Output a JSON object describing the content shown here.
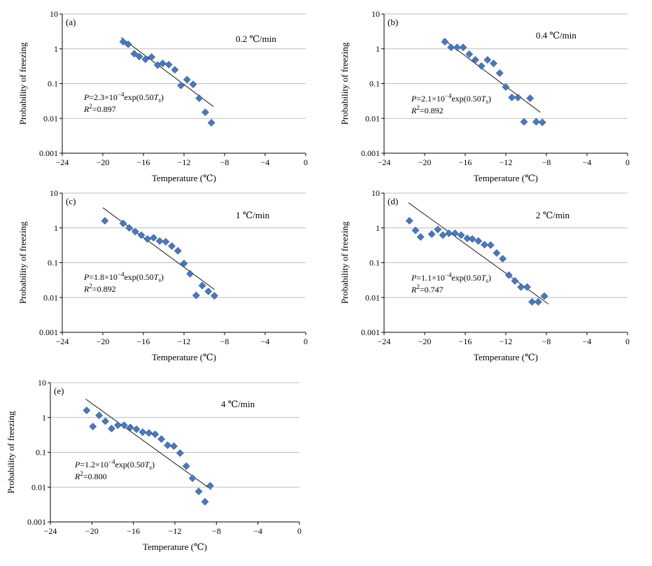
{
  "figure": {
    "xlabel": "Temperature (℃)",
    "ylabel": "Probability of freezing",
    "marker_color": "#4a78b8",
    "marker_edge": "#3a609a",
    "grid_color": "#bdbdbd",
    "fit_color": "#000000"
  },
  "chart_data": [
    {
      "type": "scatter",
      "id": "a",
      "panel_label": "(a)",
      "rate_label": "0.2 ℃/min",
      "equation": {
        "prefix": "P",
        "body": "=2.3×10",
        "exp": "−4",
        "tail": "exp(0.50",
        "var": "T",
        "sub": "s",
        "close": ")"
      },
      "r2": {
        "label": "R",
        "sup": "2",
        "value": "=0.897"
      },
      "xlim": [
        -24,
        0
      ],
      "xticks": [
        -24,
        -20,
        -16,
        -12,
        -8,
        -4,
        0
      ],
      "ylim": [
        0.001,
        10
      ],
      "yscale": "log",
      "yticks": [
        "0.001",
        "0.01",
        "0.1",
        "1",
        "10"
      ],
      "fit": {
        "x": [
          -18.2,
          -9.1
        ],
        "y": [
          2.1,
          0.022
        ]
      },
      "points": [
        [
          -18.0,
          1.6
        ],
        [
          -17.5,
          1.35
        ],
        [
          -16.9,
          0.72
        ],
        [
          -16.4,
          0.6
        ],
        [
          -15.8,
          0.5
        ],
        [
          -15.2,
          0.58
        ],
        [
          -14.6,
          0.34
        ],
        [
          -14.1,
          0.38
        ],
        [
          -13.5,
          0.35
        ],
        [
          -12.9,
          0.25
        ],
        [
          -12.3,
          0.088
        ],
        [
          -11.7,
          0.13
        ],
        [
          -11.1,
          0.095
        ],
        [
          -10.5,
          0.038
        ],
        [
          -9.9,
          0.015
        ],
        [
          -9.3,
          0.0075
        ]
      ]
    },
    {
      "type": "scatter",
      "id": "b",
      "panel_label": "(b)",
      "rate_label": "0.4 ℃/min",
      "equation": {
        "prefix": "P",
        "body": "=2.1×10",
        "exp": "−4",
        "tail": "exp(0.50",
        "var": "T",
        "sub": "s",
        "close": ")"
      },
      "r2": {
        "label": "R",
        "sup": "2",
        "value": "=0.892"
      },
      "xlim": [
        -24,
        0
      ],
      "xticks": [
        -24,
        -20,
        -16,
        -12,
        -8,
        -4,
        0
      ],
      "ylim": [
        0.001,
        10
      ],
      "yscale": "log",
      "yticks": [
        "0.001",
        "0.01",
        "0.1",
        "1",
        "10"
      ],
      "fit": {
        "x": [
          -18.2,
          -8.6
        ],
        "y": [
          1.9,
          0.015
        ]
      },
      "points": [
        [
          -18.0,
          1.6
        ],
        [
          -17.4,
          1.1
        ],
        [
          -16.8,
          1.1
        ],
        [
          -16.2,
          1.1
        ],
        [
          -15.6,
          0.7
        ],
        [
          -15.0,
          0.48
        ],
        [
          -14.4,
          0.32
        ],
        [
          -13.8,
          0.48
        ],
        [
          -13.2,
          0.38
        ],
        [
          -12.6,
          0.2
        ],
        [
          -12.0,
          0.08
        ],
        [
          -11.4,
          0.04
        ],
        [
          -10.8,
          0.04
        ],
        [
          -10.2,
          0.008
        ],
        [
          -9.6,
          0.038
        ],
        [
          -9.0,
          0.008
        ],
        [
          -8.4,
          0.0077
        ]
      ]
    },
    {
      "type": "scatter",
      "id": "c",
      "panel_label": "(c)",
      "rate_label": "1 ℃/min",
      "equation": {
        "prefix": "P",
        "body": "=1.8×10",
        "exp": "−4",
        "tail": "exp(0.50",
        "var": "T",
        "sub": "s",
        "close": ")"
      },
      "r2": {
        "label": "R",
        "sup": "2",
        "value": "=0.892"
      },
      "xlim": [
        -24,
        0
      ],
      "xticks": [
        -24,
        -20,
        -16,
        -12,
        -8,
        -4,
        0
      ],
      "ylim": [
        0.001,
        10
      ],
      "yscale": "log",
      "yticks": [
        "0.001",
        "0.01",
        "0.1",
        "1",
        "10"
      ],
      "fit": {
        "x": [
          -20.0,
          -9.0
        ],
        "y": [
          3.8,
          0.017
        ]
      },
      "points": [
        [
          -19.8,
          1.6
        ],
        [
          -18.0,
          1.35
        ],
        [
          -17.4,
          1.0
        ],
        [
          -16.8,
          0.78
        ],
        [
          -16.2,
          0.62
        ],
        [
          -15.6,
          0.48
        ],
        [
          -15.0,
          0.52
        ],
        [
          -14.4,
          0.42
        ],
        [
          -13.8,
          0.4
        ],
        [
          -13.2,
          0.3
        ],
        [
          -12.6,
          0.22
        ],
        [
          -12.0,
          0.095
        ],
        [
          -11.4,
          0.048
        ],
        [
          -10.8,
          0.0115
        ],
        [
          -10.2,
          0.022
        ],
        [
          -9.6,
          0.015
        ],
        [
          -9.0,
          0.0112
        ]
      ]
    },
    {
      "type": "scatter",
      "id": "d",
      "panel_label": "(d)",
      "rate_label": "2 ℃/min",
      "equation": {
        "prefix": "P",
        "body": "=1.1×10",
        "exp": "−4",
        "tail": "exp(0.50",
        "var": "T",
        "sub": "s",
        "close": ")"
      },
      "r2": {
        "label": "R",
        "sup": "2",
        "value": "=0.747"
      },
      "xlim": [
        -24,
        0
      ],
      "xticks": [
        -24,
        -20,
        -16,
        -12,
        -8,
        -4,
        0
      ],
      "ylim": [
        0.001,
        10
      ],
      "yscale": "log",
      "yticks": [
        "0.001",
        "0.01",
        "0.1",
        "1",
        "10"
      ],
      "fit": {
        "x": [
          -21.6,
          -7.8
        ],
        "y": [
          5.3,
          0.0065
        ]
      },
      "points": [
        [
          -21.5,
          1.6
        ],
        [
          -20.9,
          0.85
        ],
        [
          -20.4,
          0.55
        ],
        [
          -19.3,
          0.66
        ],
        [
          -18.7,
          0.9
        ],
        [
          -18.2,
          0.62
        ],
        [
          -17.6,
          0.7
        ],
        [
          -17.0,
          0.7
        ],
        [
          -16.4,
          0.62
        ],
        [
          -15.8,
          0.5
        ],
        [
          -15.3,
          0.48
        ],
        [
          -14.7,
          0.42
        ],
        [
          -14.1,
          0.33
        ],
        [
          -13.5,
          0.32
        ],
        [
          -12.9,
          0.19
        ],
        [
          -12.3,
          0.13
        ],
        [
          -11.7,
          0.044
        ],
        [
          -11.1,
          0.03
        ],
        [
          -10.5,
          0.02
        ],
        [
          -9.9,
          0.02
        ],
        [
          -9.4,
          0.0075
        ],
        [
          -8.8,
          0.0075
        ],
        [
          -8.2,
          0.011
        ]
      ]
    },
    {
      "type": "scatter",
      "id": "e",
      "panel_label": "(e)",
      "rate_label": "4 ℃/min",
      "equation": {
        "prefix": "P",
        "body": "=1.2×10",
        "exp": "−4",
        "tail": "exp(0.50",
        "var": "T",
        "sub": "s",
        "close": ")"
      },
      "r2": {
        "label": "R",
        "sup": "2",
        "value": "=0.800"
      },
      "xlim": [
        -24,
        0
      ],
      "xticks": [
        -24,
        -20,
        -16,
        -12,
        -8,
        -4,
        0
      ],
      "ylim": [
        0.001,
        10
      ],
      "yscale": "log",
      "yticks": [
        "0.001",
        "0.01",
        "0.1",
        "1",
        "10"
      ],
      "fit": {
        "x": [
          -20.6,
          -8.5
        ],
        "y": [
          3.4,
          0.0085
        ]
      },
      "points": [
        [
          -20.5,
          1.6
        ],
        [
          -19.9,
          0.55
        ],
        [
          -19.3,
          1.15
        ],
        [
          -18.7,
          0.78
        ],
        [
          -18.1,
          0.48
        ],
        [
          -17.5,
          0.6
        ],
        [
          -16.9,
          0.6
        ],
        [
          -16.3,
          0.52
        ],
        [
          -15.7,
          0.46
        ],
        [
          -15.1,
          0.38
        ],
        [
          -14.5,
          0.36
        ],
        [
          -13.9,
          0.33
        ],
        [
          -13.3,
          0.24
        ],
        [
          -12.7,
          0.16
        ],
        [
          -12.1,
          0.15
        ],
        [
          -11.5,
          0.095
        ],
        [
          -10.9,
          0.04
        ],
        [
          -10.3,
          0.018
        ],
        [
          -9.7,
          0.0075
        ],
        [
          -9.1,
          0.0038
        ],
        [
          -8.6,
          0.011
        ]
      ]
    }
  ]
}
